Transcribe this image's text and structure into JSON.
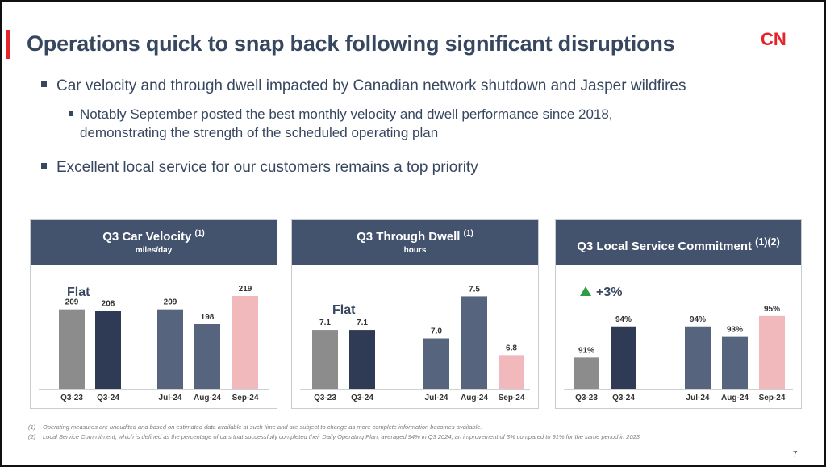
{
  "slide": {
    "title": "Operations quick to snap back following significant disruptions",
    "logo_text": "CN",
    "bullets": [
      "Car velocity and through dwell impacted by Canadian network shutdown and Jasper wildfires",
      "Excellent local service for our customers remains a top priority"
    ],
    "sub_bullet": [
      "Notably September posted the best monthly velocity and dwell performance since 2018,",
      "demonstrating the strength of the scheduled operating plan"
    ],
    "footnotes": [
      {
        "num": "(1)",
        "text": "Operating measures are unaudited and based on estimated data available at such time and are subject to change as more complete information becomes available."
      },
      {
        "num": "(2)",
        "text": "Local Service Commitment, which is defined as the percentage of cars that successfully completed their Daily Operating Plan, averaged 94% in Q3 2024, an improvement of 3% compared to 91% for the same period in 2023."
      }
    ],
    "page_number": "7"
  },
  "colors": {
    "accent": "#e3242b",
    "header": "#44536d",
    "text": "#37475f",
    "gray_bar": "#8c8c8c",
    "navy_bar": "#2f3b54",
    "slate_bar": "#56657d",
    "pink_bar": "#f2b9bd",
    "up_arrow": "#2e9e44"
  },
  "chart_data": [
    {
      "type": "bar",
      "title": "Q3 Car Velocity",
      "title_sup": "(1)",
      "subtitle": "miles/day",
      "annotation": "Flat",
      "categories": [
        "Q3-23",
        "Q3-24",
        "Jul-24",
        "Aug-24",
        "Sep-24"
      ],
      "values": [
        209,
        208,
        209,
        198,
        219
      ],
      "labels": [
        "209",
        "208",
        "209",
        "198",
        "219"
      ],
      "bar_colors": [
        "gray",
        "navy",
        "slate",
        "slate",
        "pink"
      ],
      "ylim": [
        150,
        225
      ]
    },
    {
      "type": "bar",
      "title": "Q3 Through Dwell",
      "title_sup": "(1)",
      "subtitle": "hours",
      "annotation": "Flat",
      "categories": [
        "Q3-23",
        "Q3-24",
        "Jul-24",
        "Aug-24",
        "Sep-24"
      ],
      "values": [
        7.1,
        7.1,
        7.0,
        7.5,
        6.8
      ],
      "labels": [
        "7.1",
        "7.1",
        "7.0",
        "7.5",
        "6.8"
      ],
      "bar_colors": [
        "gray",
        "navy",
        "slate",
        "slate",
        "pink"
      ],
      "ylim": [
        6.4,
        7.6
      ]
    },
    {
      "type": "bar",
      "title": "Q3 Local Service Commitment",
      "title_sup": "(1)(2)",
      "subtitle": "",
      "annotation": "+3%",
      "categories": [
        "Q3-23",
        "Q3-24",
        "Jul-24",
        "Aug-24",
        "Sep-24"
      ],
      "values": [
        91,
        94,
        94,
        93,
        95
      ],
      "labels": [
        "91%",
        "94%",
        "94%",
        "93%",
        "95%"
      ],
      "bar_colors": [
        "gray",
        "navy",
        "slate",
        "slate",
        "pink"
      ],
      "ylim": [
        88,
        96
      ]
    }
  ]
}
